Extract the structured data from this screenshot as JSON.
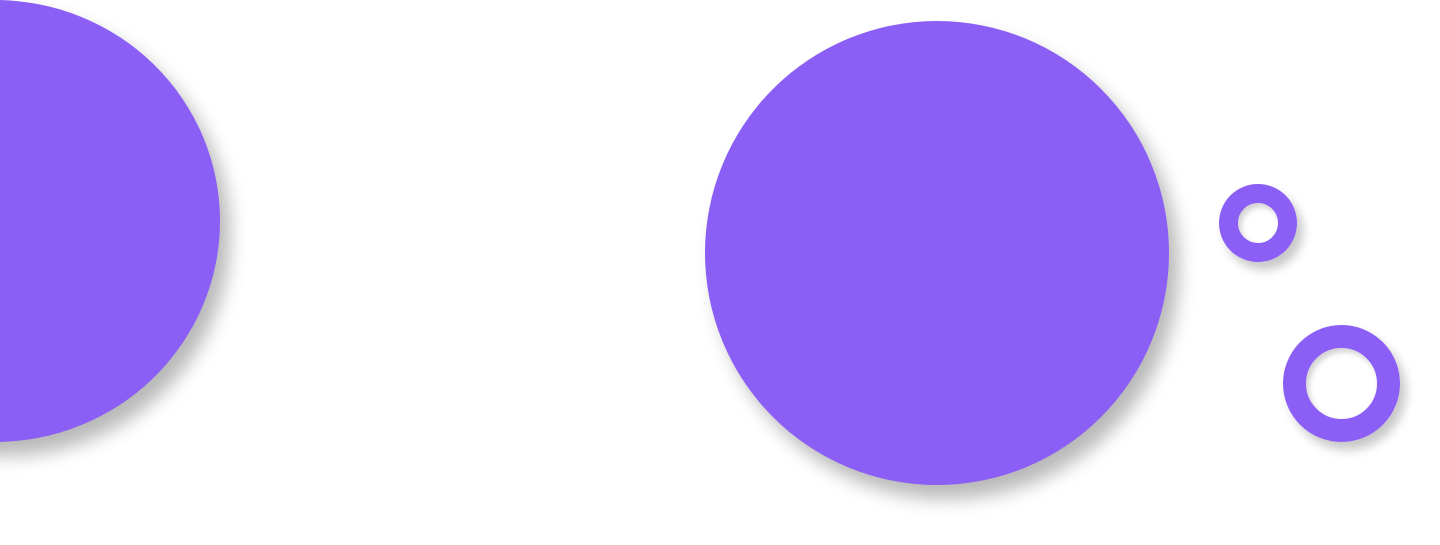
{
  "colors": {
    "background": "#ffffff",
    "accent": "#8b5ff5",
    "shadow": "rgba(0,0,0,0.28)"
  },
  "shapes": [
    {
      "id": "blob-left",
      "kind": "filled-circle",
      "color": "#8b5ff5"
    },
    {
      "id": "blob-center",
      "kind": "filled-circle",
      "color": "#8b5ff5"
    },
    {
      "id": "ring-small",
      "kind": "ring",
      "color": "#8b5ff5"
    },
    {
      "id": "ring-large",
      "kind": "ring",
      "color": "#8b5ff5"
    }
  ]
}
